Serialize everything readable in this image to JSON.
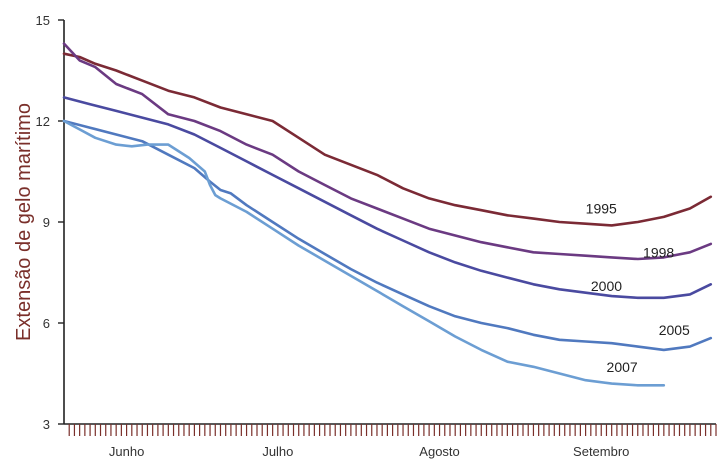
{
  "chart_data": {
    "type": "line",
    "title": "",
    "ylabel": "Extensão de gelo marítimo",
    "xlabel": "",
    "ylim": [
      3,
      15
    ],
    "yticks": [
      3,
      6,
      9,
      12,
      15
    ],
    "xlim": [
      0,
      125
    ],
    "months": [
      {
        "label": "Junho",
        "x": 12
      },
      {
        "label": "Julho",
        "x": 41
      },
      {
        "label": "Agosto",
        "x": 72
      },
      {
        "label": "Setembro",
        "x": 103
      }
    ],
    "grid": false,
    "series": [
      {
        "name": "1995",
        "color": "#7b2a35",
        "x": [
          0,
          3,
          6,
          10,
          15,
          20,
          25,
          30,
          35,
          40,
          45,
          50,
          55,
          60,
          65,
          70,
          75,
          80,
          85,
          90,
          95,
          100,
          105,
          110,
          115,
          120,
          124
        ],
        "values": [
          14.0,
          13.9,
          13.7,
          13.5,
          13.2,
          12.9,
          12.7,
          12.4,
          12.2,
          12.0,
          11.5,
          11.0,
          10.7,
          10.4,
          10.0,
          9.7,
          9.5,
          9.35,
          9.2,
          9.1,
          9.0,
          8.95,
          8.9,
          9.0,
          9.15,
          9.4,
          9.75
        ]
      },
      {
        "name": "1998",
        "color": "#6b3a82",
        "x": [
          0,
          3,
          6,
          10,
          15,
          20,
          25,
          30,
          35,
          40,
          45,
          50,
          55,
          60,
          65,
          70,
          75,
          80,
          85,
          90,
          95,
          100,
          105,
          110,
          115,
          120,
          124
        ],
        "values": [
          14.3,
          13.8,
          13.6,
          13.1,
          12.8,
          12.2,
          12.0,
          11.7,
          11.3,
          11.0,
          10.5,
          10.1,
          9.7,
          9.4,
          9.1,
          8.8,
          8.6,
          8.4,
          8.25,
          8.1,
          8.05,
          8.0,
          7.95,
          7.9,
          7.95,
          8.1,
          8.35
        ]
      },
      {
        "name": "2000",
        "color": "#4a4aa0",
        "x": [
          0,
          5,
          10,
          15,
          20,
          25,
          30,
          35,
          40,
          45,
          50,
          55,
          60,
          65,
          70,
          75,
          80,
          85,
          90,
          95,
          100,
          105,
          110,
          115,
          120,
          124
        ],
        "values": [
          12.7,
          12.5,
          12.3,
          12.1,
          11.9,
          11.6,
          11.2,
          10.8,
          10.4,
          10.0,
          9.6,
          9.2,
          8.8,
          8.45,
          8.1,
          7.8,
          7.55,
          7.35,
          7.15,
          7.0,
          6.9,
          6.8,
          6.75,
          6.75,
          6.85,
          7.15
        ]
      },
      {
        "name": "2005",
        "color": "#5079bf",
        "x": [
          0,
          5,
          10,
          15,
          20,
          25,
          28,
          30,
          32,
          35,
          40,
          45,
          50,
          55,
          60,
          65,
          70,
          75,
          80,
          85,
          90,
          95,
          100,
          105,
          110,
          115,
          120,
          124
        ],
        "values": [
          12.0,
          11.8,
          11.6,
          11.4,
          11.0,
          10.6,
          10.2,
          9.95,
          9.85,
          9.5,
          9.0,
          8.5,
          8.05,
          7.6,
          7.2,
          6.85,
          6.5,
          6.2,
          6.0,
          5.85,
          5.65,
          5.5,
          5.45,
          5.4,
          5.3,
          5.2,
          5.3,
          5.55
        ]
      },
      {
        "name": "2007",
        "color": "#6c9ed3",
        "x": [
          0,
          3,
          6,
          10,
          13,
          16,
          20,
          24,
          27,
          28,
          29,
          30,
          35,
          40,
          45,
          50,
          55,
          60,
          65,
          70,
          75,
          80,
          85,
          90,
          95,
          100,
          105,
          110,
          115
        ],
        "values": [
          12.0,
          11.75,
          11.5,
          11.3,
          11.25,
          11.3,
          11.3,
          10.9,
          10.5,
          10.1,
          9.8,
          9.7,
          9.3,
          8.8,
          8.3,
          7.85,
          7.4,
          6.95,
          6.5,
          6.05,
          5.6,
          5.2,
          4.85,
          4.7,
          4.5,
          4.3,
          4.2,
          4.15,
          4.15
        ]
      }
    ],
    "series_labels": [
      {
        "text": "1995",
        "x": 103,
        "y": 9.25
      },
      {
        "text": "1998",
        "x": 114,
        "y": 7.95
      },
      {
        "text": "2000",
        "x": 104,
        "y": 6.95
      },
      {
        "text": "2005",
        "x": 117,
        "y": 5.65
      },
      {
        "text": "2007",
        "x": 107,
        "y": 4.55
      }
    ]
  }
}
